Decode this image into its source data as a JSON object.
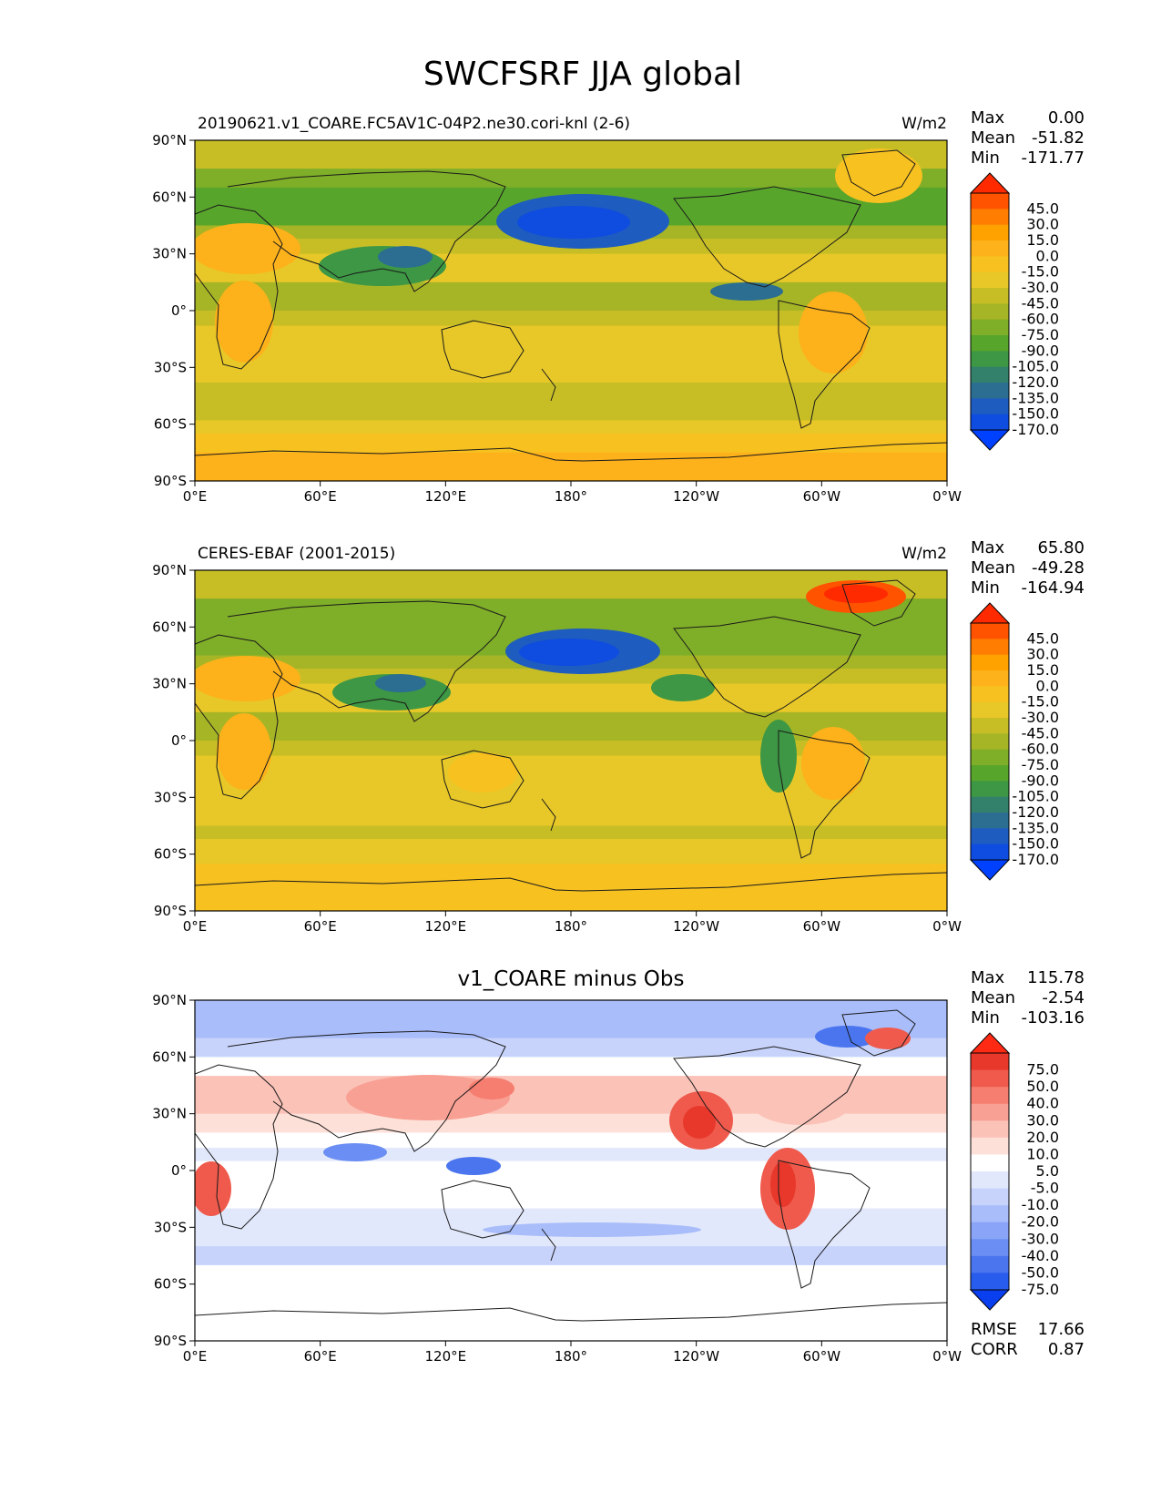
{
  "figure_title": "SWCFSRF JJA global",
  "colors": {
    "land_outline": "#1a1a1a",
    "frame": "#000000"
  },
  "icons": [
    "colorbar-upper-extend-triangle",
    "colorbar-lower-extend-triangle"
  ],
  "chart_data": [
    {
      "type": "heatmap",
      "title": "20190621.v1_COARE.FC5AV1C-04P2.ne30.cori-knl (2-6)",
      "units": "W/m2",
      "stats": [
        {
          "label": "Max",
          "value": "0.00"
        },
        {
          "label": "Mean",
          "value": "-51.82"
        },
        {
          "label": "Min",
          "value": "-171.77"
        }
      ],
      "xticks": [
        "0°E",
        "60°E",
        "120°E",
        "180°",
        "120°W",
        "60°W",
        "0°W"
      ],
      "yticks": [
        "90°N",
        "60°N",
        "30°N",
        "0°",
        "30°S",
        "60°S",
        "90°S"
      ],
      "xlim": [
        0,
        360
      ],
      "ylim": [
        -90,
        90
      ],
      "colorbar": {
        "ticks": [
          "45.0",
          "30.0",
          "15.0",
          "0.0",
          "-15.0",
          "-30.0",
          "-45.0",
          "-60.0",
          "-75.0",
          "-90.0",
          "-105.0",
          "-120.0",
          "-135.0",
          "-150.0",
          "-170.0"
        ],
        "colors": [
          "#ff2a00",
          "#ff5300",
          "#ff7d00",
          "#ffa200",
          "#fdb11a",
          "#f7c120",
          "#e8c828",
          "#c7be26",
          "#a6b526",
          "#7fae28",
          "#58a52c",
          "#3d9744",
          "#33806b",
          "#2b6e92",
          "#1e5cbf",
          "#0f4ce0",
          "#0040ff"
        ]
      },
      "zonal_profile": {
        "lat": [
          90,
          75,
          65,
          55,
          45,
          38,
          30,
          22,
          15,
          8,
          0,
          -8,
          -15,
          -22,
          -30,
          -38,
          -45,
          -52,
          -58,
          -65,
          -75,
          -90
        ],
        "value": [
          -40,
          -75,
          -90,
          -105,
          -80,
          -60,
          -40,
          -35,
          -55,
          -75,
          -55,
          -45,
          -40,
          -35,
          -40,
          -45,
          -48,
          -50,
          -42,
          -22,
          -15,
          -15
        ]
      }
    },
    {
      "type": "heatmap",
      "title": "CERES-EBAF (2001-2015)",
      "units": "W/m2",
      "stats": [
        {
          "label": "Max",
          "value": "65.80"
        },
        {
          "label": "Mean",
          "value": "-49.28"
        },
        {
          "label": "Min",
          "value": "-164.94"
        }
      ],
      "xticks": [
        "0°E",
        "60°E",
        "120°E",
        "180°",
        "120°W",
        "60°W",
        "0°W"
      ],
      "yticks": [
        "90°N",
        "60°N",
        "30°N",
        "0°",
        "30°S",
        "60°S",
        "90°S"
      ],
      "xlim": [
        0,
        360
      ],
      "ylim": [
        -90,
        90
      ],
      "colorbar": {
        "ticks": [
          "45.0",
          "30.0",
          "15.0",
          "0.0",
          "-15.0",
          "-30.0",
          "-45.0",
          "-60.0",
          "-75.0",
          "-90.0",
          "-105.0",
          "-120.0",
          "-135.0",
          "-150.0",
          "-170.0"
        ],
        "colors": [
          "#ff2a00",
          "#ff5300",
          "#ff7d00",
          "#ffa200",
          "#fdb11a",
          "#f7c120",
          "#e8c828",
          "#c7be26",
          "#a6b526",
          "#7fae28",
          "#58a52c",
          "#3d9744",
          "#33806b",
          "#2b6e92",
          "#1e5cbf",
          "#0f4ce0",
          "#0040ff"
        ]
      },
      "zonal_profile": {
        "lat": [
          90,
          75,
          65,
          55,
          45,
          38,
          30,
          22,
          15,
          8,
          0,
          -8,
          -15,
          -22,
          -30,
          -38,
          -45,
          -52,
          -58,
          -65,
          -75,
          -90
        ],
        "value": [
          -35,
          -70,
          -85,
          -95,
          -85,
          -60,
          -40,
          -35,
          -55,
          -75,
          -55,
          -42,
          -38,
          -36,
          -38,
          -40,
          -45,
          -48,
          -40,
          -22,
          -18,
          -15
        ]
      }
    },
    {
      "type": "heatmap",
      "title": "v1_COARE minus Obs",
      "units": "",
      "stats": [
        {
          "label": "Max",
          "value": "115.78"
        },
        {
          "label": "Mean",
          "value": "-2.54"
        },
        {
          "label": "Min",
          "value": "-103.16"
        }
      ],
      "extra_stats": [
        {
          "label": "RMSE",
          "value": "17.66"
        },
        {
          "label": "CORR",
          "value": "0.87"
        }
      ],
      "xticks": [
        "0°E",
        "60°E",
        "120°E",
        "180°",
        "120°W",
        "60°W",
        "0°W"
      ],
      "yticks": [
        "90°N",
        "60°N",
        "30°N",
        "0°",
        "30°S",
        "60°S",
        "90°S"
      ],
      "xlim": [
        0,
        360
      ],
      "ylim": [
        -90,
        90
      ],
      "colorbar": {
        "ticks": [
          "75.0",
          "50.0",
          "40.0",
          "30.0",
          "20.0",
          "10.0",
          "5.0",
          "-5.0",
          "-10.0",
          "-20.0",
          "-30.0",
          "-40.0",
          "-50.0",
          "-75.0"
        ],
        "colors": [
          "#ff2a14",
          "#e8382c",
          "#ef5a4c",
          "#f57e70",
          "#f9a094",
          "#fbc2b8",
          "#fde0d8",
          "#ffffff",
          "#e2e8fb",
          "#c7d3fb",
          "#a9bdfa",
          "#8aa5f7",
          "#6a8ef3",
          "#4a75ef",
          "#285cec",
          "#0a3ff0"
        ]
      },
      "zonal_profile": {
        "lat": [
          90,
          80,
          70,
          60,
          50,
          40,
          30,
          20,
          12,
          5,
          0,
          -10,
          -20,
          -30,
          -40,
          -50,
          -60,
          -75,
          -90
        ],
        "value": [
          -25,
          -35,
          -20,
          -10,
          10,
          15,
          12,
          2,
          -10,
          -8,
          0,
          -3,
          -5,
          -8,
          -12,
          -10,
          0,
          0,
          0
        ]
      }
    }
  ]
}
